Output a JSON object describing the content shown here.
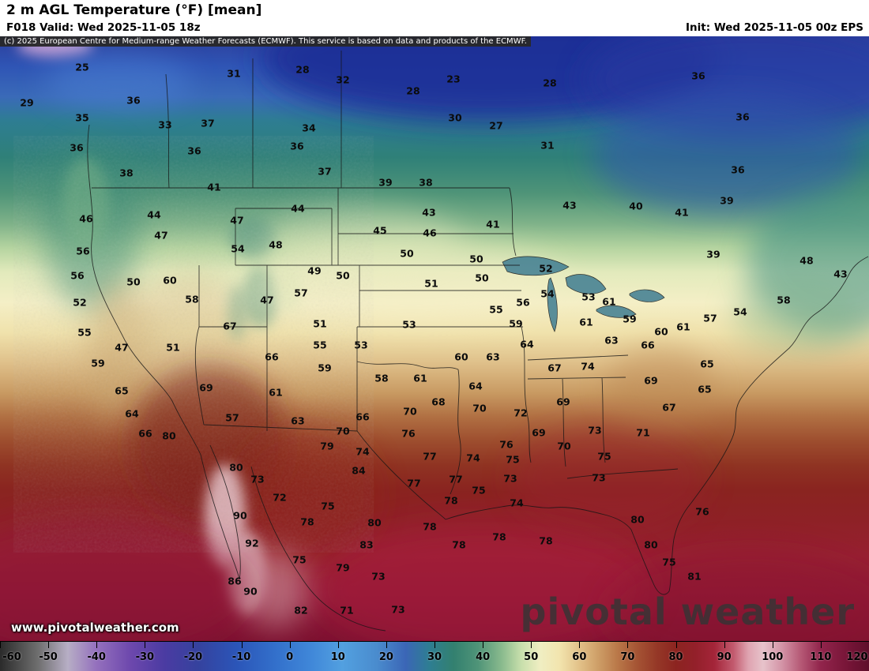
{
  "header": {
    "title": "2 m AGL Temperature (°F) [mean]",
    "forecast": "F018 Valid: Wed 2025-11-05 18z",
    "init": "Init: Wed 2025-11-05 00z EPS"
  },
  "copyright": "(c) 2025 European Centre for Medium-range Weather Forecasts (ECMWF). This service is based on data and products of the ECMWF.",
  "watermark": {
    "site": "www.pivotalweather.com",
    "brand": "pivotal weather"
  },
  "colorbar": {
    "min": -60,
    "max": 120,
    "ticks": [
      -60,
      -50,
      -40,
      -30,
      -20,
      -10,
      0,
      10,
      20,
      30,
      40,
      50,
      60,
      70,
      80,
      90,
      100,
      110,
      120
    ],
    "stops": [
      {
        "t": -60,
        "c": "#2b2b2b"
      },
      {
        "t": -52,
        "c": "#6f6f6f"
      },
      {
        "t": -46,
        "c": "#b7aec5"
      },
      {
        "t": -40,
        "c": "#9470bd"
      },
      {
        "t": -33,
        "c": "#6d48ad"
      },
      {
        "t": -26,
        "c": "#4b3ba2"
      },
      {
        "t": -19,
        "c": "#35429e"
      },
      {
        "t": -11,
        "c": "#2b55b8"
      },
      {
        "t": -3,
        "c": "#3370cb"
      },
      {
        "t": 4,
        "c": "#3f86d8"
      },
      {
        "t": 11,
        "c": "#52a0e0"
      },
      {
        "t": 18,
        "c": "#4a8cce"
      },
      {
        "t": 24,
        "c": "#3b66b6"
      },
      {
        "t": 29,
        "c": "#2e7e92"
      },
      {
        "t": 34,
        "c": "#33806f"
      },
      {
        "t": 39,
        "c": "#4f9478"
      },
      {
        "t": 44,
        "c": "#8bbb8e"
      },
      {
        "t": 48,
        "c": "#c8dfac"
      },
      {
        "t": 52,
        "c": "#f0eec2"
      },
      {
        "t": 56,
        "c": "#f2e4ae"
      },
      {
        "t": 60,
        "c": "#e2c188"
      },
      {
        "t": 64,
        "c": "#cd9d66"
      },
      {
        "t": 68,
        "c": "#b97748"
      },
      {
        "t": 72,
        "c": "#a55434"
      },
      {
        "t": 76,
        "c": "#953827"
      },
      {
        "t": 80,
        "c": "#8c2420"
      },
      {
        "t": 84,
        "c": "#93202a"
      },
      {
        "t": 88,
        "c": "#a42539"
      },
      {
        "t": 92,
        "c": "#c25a6e"
      },
      {
        "t": 95,
        "c": "#dfa3b0"
      },
      {
        "t": 98,
        "c": "#e7c3cb"
      },
      {
        "t": 102,
        "c": "#d393a6"
      },
      {
        "t": 106,
        "c": "#b55875"
      },
      {
        "t": 110,
        "c": "#92254c"
      },
      {
        "t": 115,
        "c": "#7a1639"
      },
      {
        "t": 120,
        "c": "#5f0e2b"
      }
    ]
  },
  "map": {
    "labels": [
      [
        25,
        104,
        85
      ],
      [
        31,
        296,
        93
      ],
      [
        28,
        383,
        88
      ],
      [
        32,
        434,
        101
      ],
      [
        23,
        574,
        100
      ],
      [
        28,
        523,
        115
      ],
      [
        28,
        696,
        105
      ],
      [
        36,
        884,
        96
      ],
      [
        29,
        34,
        130
      ],
      [
        36,
        169,
        127
      ],
      [
        35,
        104,
        149
      ],
      [
        33,
        209,
        158
      ],
      [
        37,
        263,
        156
      ],
      [
        34,
        391,
        162
      ],
      [
        30,
        576,
        149
      ],
      [
        27,
        628,
        159
      ],
      [
        36,
        940,
        148
      ],
      [
        36,
        97,
        187
      ],
      [
        36,
        246,
        191
      ],
      [
        36,
        376,
        185
      ],
      [
        31,
        693,
        184
      ],
      [
        38,
        160,
        219
      ],
      [
        37,
        411,
        217
      ],
      [
        39,
        488,
        231
      ],
      [
        38,
        539,
        231
      ],
      [
        41,
        271,
        237
      ],
      [
        36,
        934,
        215
      ],
      [
        44,
        377,
        264
      ],
      [
        43,
        543,
        269
      ],
      [
        41,
        624,
        284
      ],
      [
        43,
        721,
        260
      ],
      [
        40,
        805,
        261
      ],
      [
        41,
        863,
        269
      ],
      [
        39,
        920,
        254
      ],
      [
        46,
        109,
        277
      ],
      [
        44,
        195,
        272
      ],
      [
        47,
        300,
        279
      ],
      [
        45,
        481,
        292
      ],
      [
        46,
        544,
        295
      ],
      [
        47,
        204,
        298
      ],
      [
        54,
        301,
        315
      ],
      [
        48,
        349,
        310
      ],
      [
        56,
        105,
        318
      ],
      [
        50,
        515,
        321
      ],
      [
        50,
        603,
        328
      ],
      [
        52,
        691,
        340
      ],
      [
        39,
        903,
        322
      ],
      [
        48,
        1021,
        330
      ],
      [
        43,
        1064,
        347
      ],
      [
        49,
        398,
        343
      ],
      [
        50,
        434,
        349
      ],
      [
        56,
        98,
        349
      ],
      [
        50,
        169,
        357
      ],
      [
        60,
        215,
        355
      ],
      [
        51,
        546,
        359
      ],
      [
        50,
        610,
        352
      ],
      [
        57,
        381,
        371
      ],
      [
        47,
        338,
        380
      ],
      [
        58,
        243,
        379
      ],
      [
        52,
        101,
        383
      ],
      [
        55,
        628,
        392
      ],
      [
        56,
        662,
        383
      ],
      [
        54,
        693,
        372
      ],
      [
        53,
        745,
        376
      ],
      [
        61,
        771,
        382
      ],
      [
        67,
        291,
        413
      ],
      [
        51,
        405,
        410
      ],
      [
        55,
        107,
        421
      ],
      [
        53,
        518,
        411
      ],
      [
        59,
        653,
        410
      ],
      [
        61,
        742,
        408
      ],
      [
        59,
        797,
        404
      ],
      [
        60,
        837,
        420
      ],
      [
        61,
        865,
        414
      ],
      [
        57,
        899,
        403
      ],
      [
        54,
        937,
        395
      ],
      [
        58,
        992,
        380
      ],
      [
        47,
        154,
        440
      ],
      [
        51,
        219,
        440
      ],
      [
        55,
        405,
        437
      ],
      [
        53,
        457,
        437
      ],
      [
        64,
        667,
        436
      ],
      [
        63,
        774,
        431
      ],
      [
        66,
        820,
        437
      ],
      [
        59,
        124,
        460
      ],
      [
        66,
        344,
        452
      ],
      [
        59,
        411,
        466
      ],
      [
        60,
        584,
        452
      ],
      [
        63,
        624,
        452
      ],
      [
        67,
        702,
        466
      ],
      [
        74,
        744,
        464
      ],
      [
        65,
        895,
        461
      ],
      [
        65,
        154,
        495
      ],
      [
        69,
        261,
        491
      ],
      [
        61,
        349,
        497
      ],
      [
        58,
        483,
        479
      ],
      [
        61,
        532,
        479
      ],
      [
        64,
        602,
        489
      ],
      [
        69,
        824,
        482
      ],
      [
        65,
        892,
        493
      ],
      [
        68,
        555,
        509
      ],
      [
        69,
        713,
        509
      ],
      [
        67,
        847,
        516
      ],
      [
        64,
        167,
        524
      ],
      [
        57,
        294,
        529
      ],
      [
        63,
        377,
        533
      ],
      [
        66,
        459,
        528
      ],
      [
        70,
        519,
        521
      ],
      [
        70,
        607,
        517
      ],
      [
        72,
        659,
        523
      ],
      [
        66,
        184,
        549
      ],
      [
        80,
        214,
        552
      ],
      [
        70,
        434,
        546
      ],
      [
        76,
        517,
        549
      ],
      [
        69,
        682,
        548
      ],
      [
        73,
        753,
        545
      ],
      [
        71,
        814,
        548
      ],
      [
        79,
        414,
        565
      ],
      [
        74,
        459,
        572
      ],
      [
        76,
        641,
        563
      ],
      [
        70,
        714,
        565
      ],
      [
        75,
        765,
        578
      ],
      [
        80,
        299,
        592
      ],
      [
        73,
        326,
        607
      ],
      [
        84,
        454,
        596
      ],
      [
        77,
        544,
        578
      ],
      [
        74,
        599,
        580
      ],
      [
        75,
        649,
        582
      ],
      [
        73,
        758,
        605
      ],
      [
        77,
        524,
        612
      ],
      [
        77,
        577,
        607
      ],
      [
        75,
        606,
        621
      ],
      [
        73,
        646,
        606
      ],
      [
        72,
        354,
        630
      ],
      [
        75,
        415,
        641
      ],
      [
        78,
        571,
        634
      ],
      [
        74,
        654,
        637
      ],
      [
        90,
        304,
        653
      ],
      [
        78,
        389,
        661
      ],
      [
        80,
        474,
        662
      ],
      [
        78,
        544,
        667
      ],
      [
        80,
        807,
        658
      ],
      [
        76,
        889,
        648
      ],
      [
        92,
        319,
        688
      ],
      [
        83,
        464,
        690
      ],
      [
        78,
        581,
        690
      ],
      [
        78,
        632,
        680
      ],
      [
        78,
        691,
        685
      ],
      [
        80,
        824,
        690
      ],
      [
        75,
        847,
        712
      ],
      [
        81,
        879,
        730
      ],
      [
        75,
        379,
        709
      ],
      [
        79,
        434,
        719
      ],
      [
        73,
        479,
        730
      ],
      [
        86,
        297,
        736
      ],
      [
        90,
        317,
        749
      ],
      [
        82,
        381,
        773
      ],
      [
        71,
        439,
        773
      ],
      [
        73,
        504,
        772
      ]
    ]
  }
}
